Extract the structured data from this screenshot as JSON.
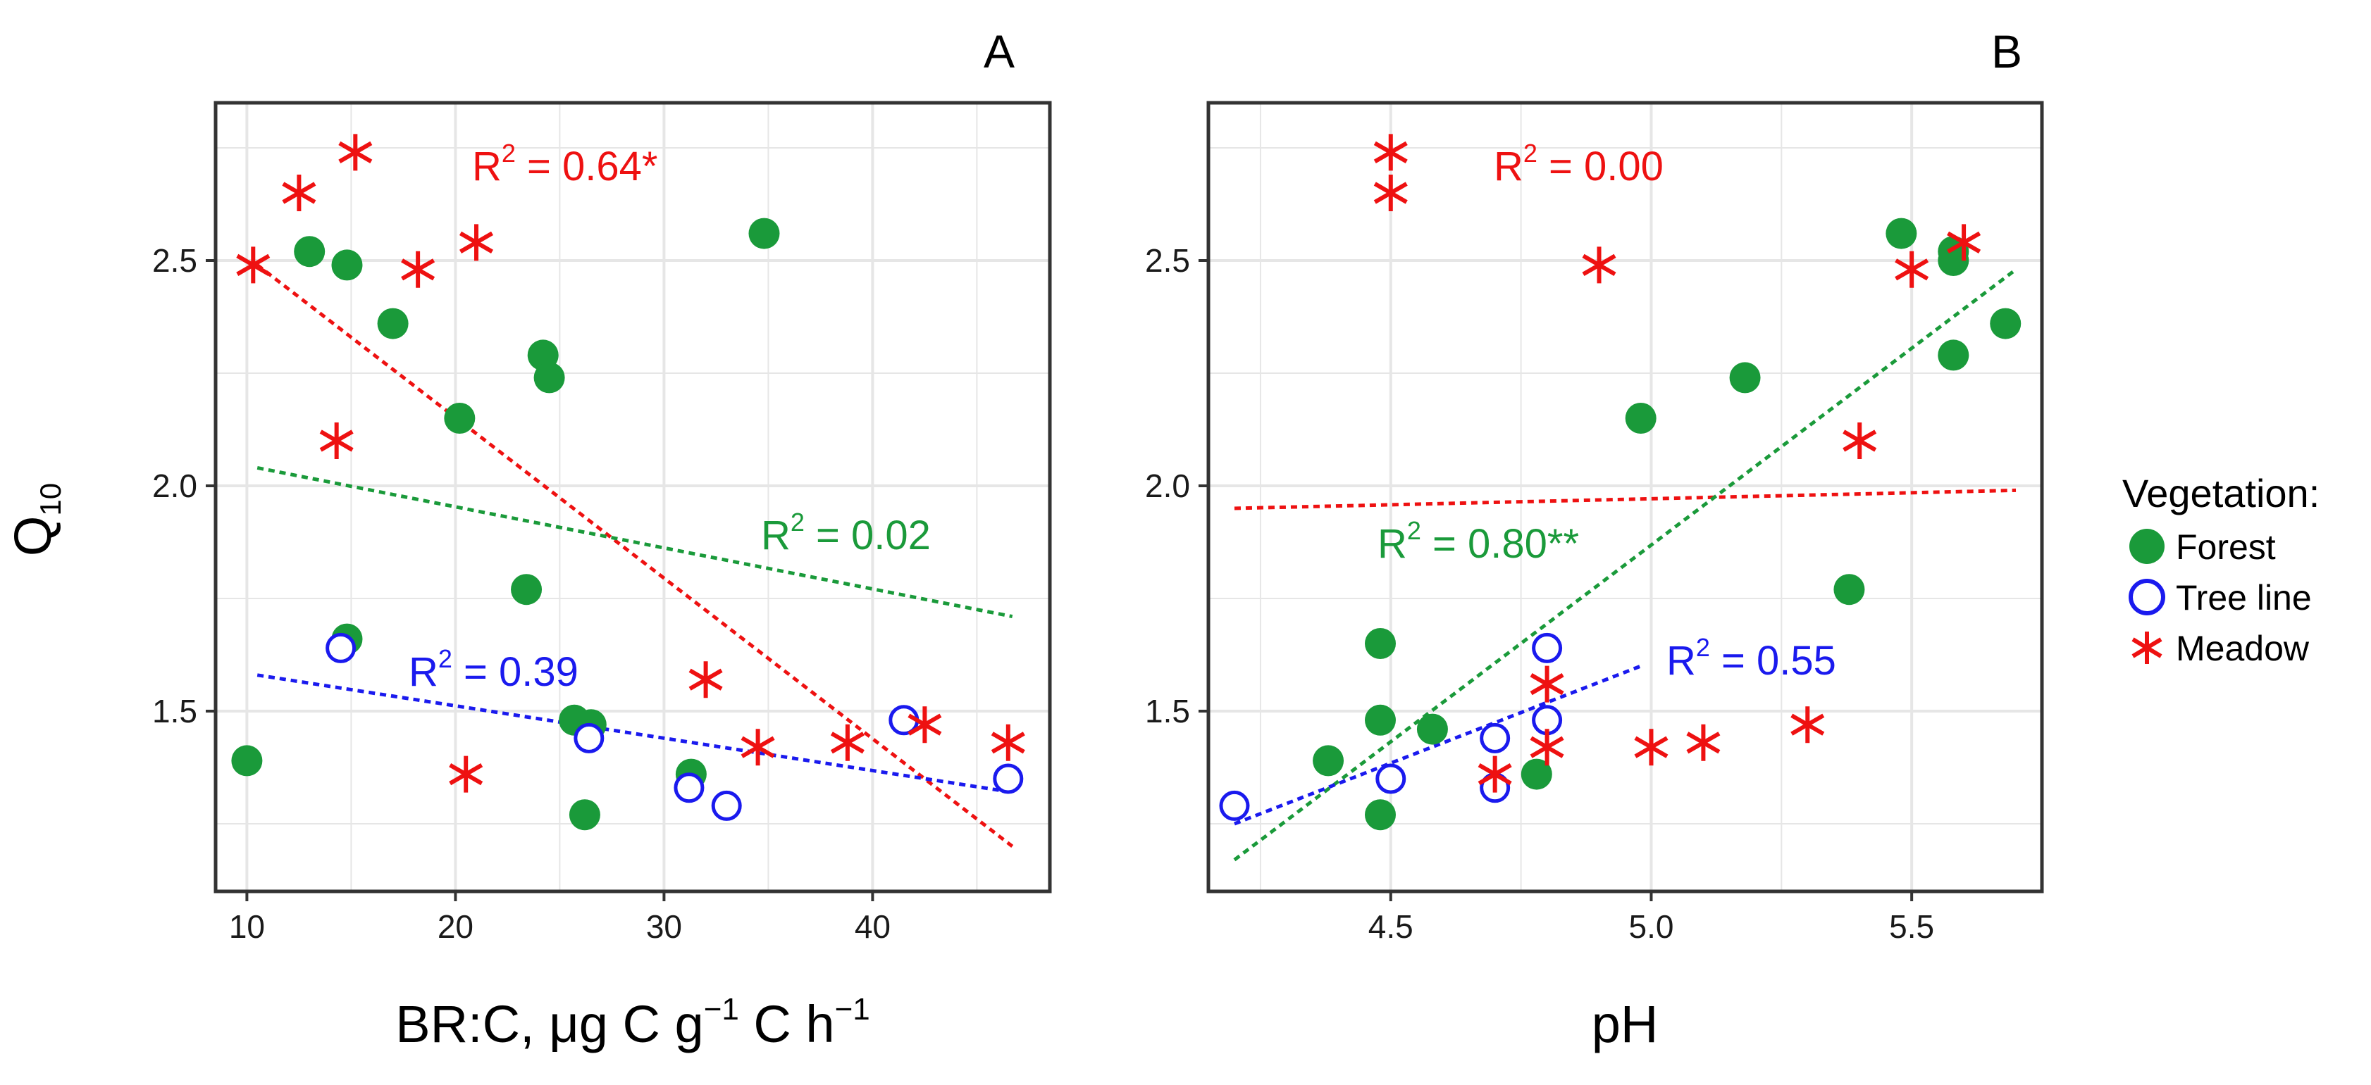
{
  "colors": {
    "forest": "#1a9a3a",
    "tree_line": "#1a1aee",
    "meadow": "#ee1111",
    "grid": "#e6e6e6",
    "frame": "#333333"
  },
  "y_axis_label": "Q",
  "y_axis_label_sub": "10",
  "legend": {
    "title": "Vegetation:",
    "items": [
      {
        "key": "forest",
        "label": "Forest",
        "marker": "filled-circle"
      },
      {
        "key": "tree_line",
        "label": "Tree line",
        "marker": "open-circle"
      },
      {
        "key": "meadow",
        "label": "Meadow",
        "marker": "asterisk"
      }
    ]
  },
  "chart_data": [
    {
      "type": "scatter",
      "panel_label": "A",
      "xlabel_parts": {
        "t1": "BR:C, μg C g",
        "s1": "−1",
        "t2": " C h",
        "s2": "−1"
      },
      "xlim": [
        8.5,
        48.5
      ],
      "ylim": [
        1.1,
        2.85
      ],
      "x_ticks": [
        10,
        20,
        30,
        40
      ],
      "y_ticks": [
        1.5,
        2.0,
        2.5
      ],
      "x_tick_labels": [
        "10",
        "20",
        "30",
        "40"
      ],
      "y_tick_labels": [
        "1.5",
        "2.0",
        "2.5"
      ],
      "grid": true,
      "series": [
        {
          "name": "Forest",
          "key": "forest",
          "x": [
            13.0,
            14.8,
            17.0,
            20.2,
            24.2,
            24.5,
            23.4,
            14.8,
            25.7,
            26.5,
            31.3,
            26.2,
            10.0,
            34.8
          ],
          "y": [
            2.52,
            2.49,
            2.36,
            2.15,
            2.29,
            2.24,
            1.77,
            1.66,
            1.48,
            1.47,
            1.36,
            1.27,
            1.39,
            2.56
          ]
        },
        {
          "name": "Tree line",
          "key": "tree_line",
          "x": [
            14.5,
            26.4,
            31.2,
            33.0,
            41.5,
            46.5
          ],
          "y": [
            1.64,
            1.44,
            1.33,
            1.29,
            1.48,
            1.35
          ]
        },
        {
          "name": "Meadow",
          "key": "meadow",
          "x": [
            10.3,
            12.5,
            15.2,
            18.2,
            21.0,
            14.3,
            32.0,
            34.5,
            38.8,
            42.5,
            46.5,
            20.5
          ],
          "y": [
            2.49,
            2.65,
            2.74,
            2.48,
            2.54,
            2.1,
            1.57,
            1.42,
            1.43,
            1.47,
            1.43,
            1.36
          ]
        }
      ],
      "fits": [
        {
          "key": "meadow",
          "x": [
            10.5,
            46.7
          ],
          "y": [
            2.49,
            1.2
          ],
          "label_pre": "R",
          "label_sup": "2",
          "label_post": " = 0.64*"
        },
        {
          "key": "forest",
          "x": [
            10.5,
            46.7
          ],
          "y": [
            2.04,
            1.71
          ],
          "label_pre": "R",
          "label_sup": "2",
          "label_post": " = 0.02"
        },
        {
          "key": "tree_line",
          "x": [
            10.5,
            46.7
          ],
          "y": [
            1.58,
            1.32
          ],
          "label_pre": "R",
          "label_sup": "2",
          "label_post": " = 0.39"
        }
      ]
    },
    {
      "type": "scatter",
      "panel_label": "B",
      "xlabel_parts": {
        "t1": "pH",
        "s1": "",
        "t2": "",
        "s2": ""
      },
      "xlim": [
        4.15,
        5.75
      ],
      "ylim": [
        1.1,
        2.85
      ],
      "x_ticks": [
        4.5,
        5.0,
        5.5
      ],
      "y_ticks": [
        1.5,
        2.0,
        2.5
      ],
      "x_tick_labels": [
        "4.5",
        "5.0",
        "5.5"
      ],
      "y_tick_labels": [
        "1.5",
        "2.0",
        "2.5"
      ],
      "grid": true,
      "series": [
        {
          "name": "Forest",
          "key": "forest",
          "x": [
            4.48,
            4.48,
            4.38,
            4.48,
            4.58,
            4.78,
            4.98,
            5.18,
            5.38,
            5.48,
            5.58,
            5.58,
            5.58,
            5.68
          ],
          "y": [
            1.65,
            1.48,
            1.39,
            1.27,
            1.46,
            1.36,
            2.15,
            2.24,
            1.77,
            2.56,
            2.52,
            2.5,
            2.29,
            2.36
          ]
        },
        {
          "name": "Tree line",
          "key": "tree_line",
          "x": [
            4.2,
            4.5,
            4.7,
            4.7,
            4.8,
            4.8
          ],
          "y": [
            1.29,
            1.35,
            1.33,
            1.44,
            1.48,
            1.64
          ]
        },
        {
          "name": "Meadow",
          "key": "meadow",
          "x": [
            4.5,
            4.5,
            4.9,
            5.6,
            5.5,
            5.4,
            4.8,
            4.8,
            4.7,
            5.0,
            5.1,
            5.3
          ],
          "y": [
            2.74,
            2.65,
            2.49,
            2.54,
            2.48,
            2.1,
            1.56,
            1.42,
            1.36,
            1.42,
            1.43,
            1.47
          ]
        }
      ],
      "fits": [
        {
          "key": "meadow",
          "x": [
            4.2,
            5.7
          ],
          "y": [
            1.95,
            1.99
          ],
          "label_pre": "R",
          "label_sup": "2",
          "label_post": " = 0.00"
        },
        {
          "key": "forest",
          "x": [
            4.2,
            5.7
          ],
          "y": [
            1.17,
            2.48
          ],
          "label_pre": "R",
          "label_sup": "2",
          "label_post": " = 0.80**"
        },
        {
          "key": "tree_line",
          "x": [
            4.2,
            4.98
          ],
          "y": [
            1.25,
            1.6
          ],
          "label_pre": "R",
          "label_sup": "2",
          "label_post": " = 0.55"
        }
      ]
    }
  ]
}
